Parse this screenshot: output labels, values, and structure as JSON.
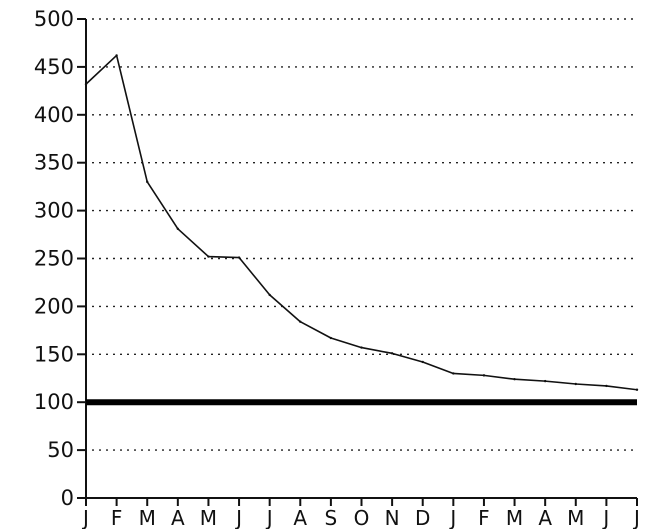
{
  "chart_data": {
    "type": "line",
    "title": "",
    "xlabel": "",
    "ylabel": "",
    "categories": [
      "J",
      "F",
      "M",
      "A",
      "M",
      "J",
      "J",
      "A",
      "S",
      "O",
      "N",
      "D",
      "J",
      "F",
      "M",
      "A",
      "M",
      "J",
      "J"
    ],
    "series": [
      {
        "values": [
          432,
          462,
          330,
          281,
          252,
          251,
          212,
          184,
          167,
          157,
          151,
          142,
          130,
          128,
          124,
          122,
          119,
          117,
          113
        ]
      }
    ],
    "reference_line": {
      "value": 100
    },
    "ylim": [
      0,
      500
    ],
    "yticks": [
      0,
      50,
      100,
      150,
      200,
      250,
      300,
      350,
      400,
      450,
      500
    ],
    "ytick_labels": [
      "0",
      "50",
      "100",
      "150",
      "200",
      "250",
      "300",
      "350",
      "400",
      "450",
      "500"
    ],
    "grid": "horizontal-dotted",
    "legend": "none",
    "colors": {
      "line": "#111111",
      "reference": "#000000",
      "grid": "#222222",
      "background": "#ffffff"
    }
  }
}
